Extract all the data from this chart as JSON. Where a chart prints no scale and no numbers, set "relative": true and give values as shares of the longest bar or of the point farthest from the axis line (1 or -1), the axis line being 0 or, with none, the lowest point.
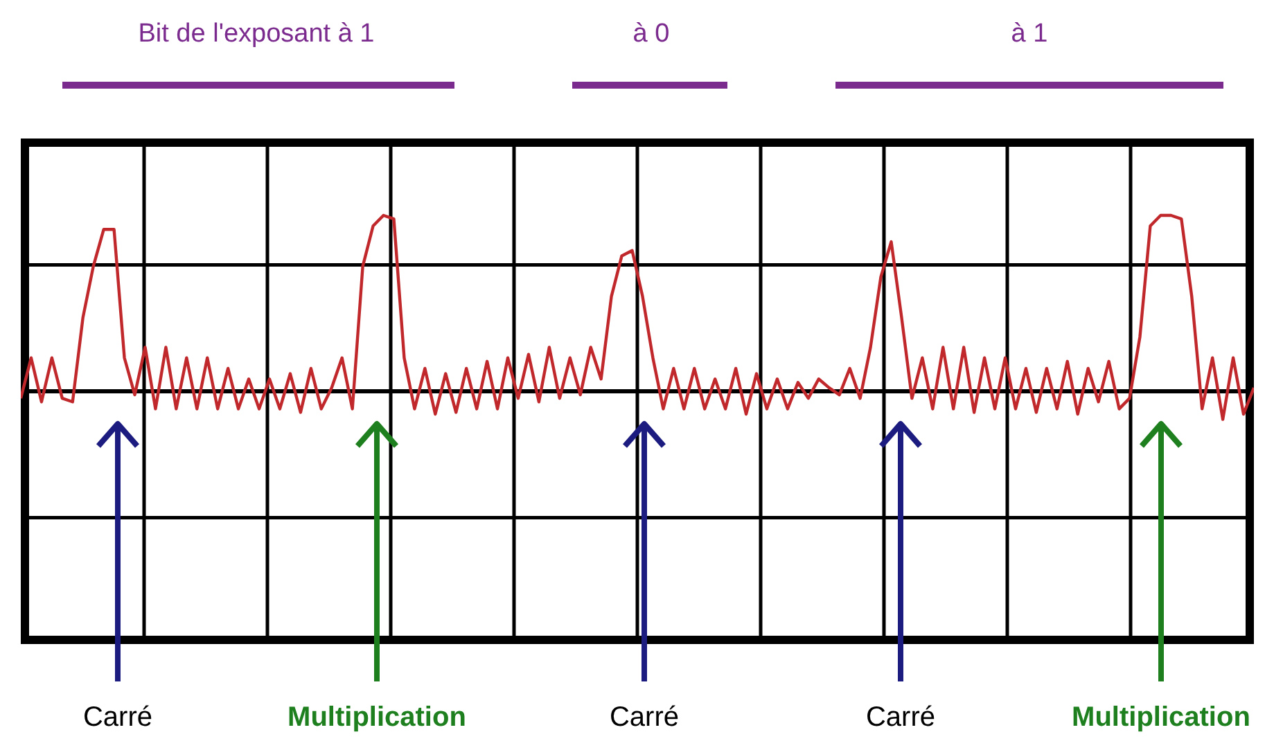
{
  "chart_data": {
    "type": "line",
    "relative": true,
    "grid": true,
    "legend": false,
    "marker": "none",
    "line_style": "solid",
    "categories": [
      null,
      null,
      null,
      null,
      null,
      null,
      null,
      null,
      null,
      null,
      null,
      null,
      null,
      null,
      null,
      null,
      null,
      null,
      null,
      null,
      null,
      null,
      null,
      null,
      null,
      null,
      null,
      null,
      null,
      null,
      null,
      null,
      null,
      null,
      null,
      null,
      null,
      null,
      null,
      null,
      null,
      null,
      null,
      null,
      null,
      null,
      null,
      null,
      null,
      null,
      null,
      null,
      null,
      null,
      null,
      null,
      null,
      null,
      null,
      null,
      null,
      null,
      null,
      null,
      null,
      null,
      null,
      null,
      null,
      null,
      null,
      null,
      null,
      null,
      null,
      null,
      null,
      null,
      null,
      null,
      null,
      null,
      null,
      null,
      null,
      null,
      null,
      null,
      null,
      null,
      null,
      null,
      null,
      null,
      null,
      null,
      null,
      null,
      null,
      null,
      null,
      null,
      null,
      null,
      null,
      null,
      null,
      null,
      null,
      null,
      null,
      null,
      null,
      null,
      null,
      null,
      null,
      null,
      null,
      null
    ],
    "series": [
      {
        "color": "#c0282c",
        "values": [
          -0.04,
          0.19,
          -0.06,
          0.19,
          -0.04,
          -0.06,
          0.42,
          0.71,
          0.92,
          0.92,
          0.19,
          -0.02,
          0.25,
          -0.1,
          0.25,
          -0.1,
          0.19,
          -0.1,
          0.19,
          -0.1,
          0.13,
          -0.1,
          0.07,
          -0.1,
          0.07,
          -0.1,
          0.1,
          -0.12,
          0.13,
          -0.1,
          0.02,
          0.19,
          -0.1,
          0.71,
          0.94,
          1.0,
          0.98,
          0.19,
          -0.1,
          0.13,
          -0.13,
          0.1,
          -0.12,
          0.13,
          -0.1,
          0.17,
          -0.1,
          0.19,
          -0.04,
          0.21,
          -0.06,
          0.25,
          -0.04,
          0.19,
          -0.02,
          0.25,
          0.07,
          0.54,
          0.77,
          0.8,
          0.54,
          0.19,
          -0.1,
          0.13,
          -0.1,
          0.13,
          -0.1,
          0.07,
          -0.1,
          0.13,
          -0.13,
          0.1,
          -0.1,
          0.07,
          -0.1,
          0.05,
          -0.04,
          0.07,
          0.02,
          -0.02,
          0.13,
          -0.04,
          0.25,
          0.65,
          0.85,
          0.42,
          -0.04,
          0.19,
          -0.1,
          0.25,
          -0.1,
          0.25,
          -0.12,
          0.19,
          -0.1,
          0.19,
          -0.1,
          0.13,
          -0.12,
          0.13,
          -0.1,
          0.17,
          -0.13,
          0.13,
          -0.06,
          0.17,
          -0.1,
          -0.04,
          0.31,
          0.94,
          1.0,
          1.0,
          0.98,
          0.54,
          -0.1,
          0.19,
          -0.16,
          0.19,
          -0.13,
          0.02
        ]
      }
    ],
    "annotations": [
      "Bit de l'exposant à 1",
      "à 0",
      "à 1",
      "Carré",
      "Multiplication",
      "Carré",
      "Carré",
      "Multiplication"
    ]
  }
}
